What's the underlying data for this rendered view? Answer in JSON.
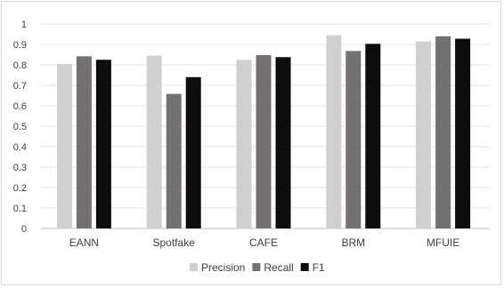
{
  "chart_data": {
    "type": "bar",
    "title": "",
    "xlabel": "",
    "ylabel": "",
    "categories": [
      "EANN",
      "Spotfake",
      "CAFE",
      "BRM",
      "MFUIE"
    ],
    "series": [
      {
        "name": "Precision",
        "color": "#d0d0d0",
        "values": [
          0.805,
          0.845,
          0.825,
          0.945,
          0.915
        ]
      },
      {
        "name": "Recall",
        "color": "#767171",
        "values": [
          0.842,
          0.658,
          0.848,
          0.868,
          0.94
        ]
      },
      {
        "name": "F1",
        "color": "#0d0d0d",
        "values": [
          0.825,
          0.74,
          0.838,
          0.903,
          0.928
        ]
      }
    ],
    "ylim": [
      0,
      1
    ],
    "yticks": [
      "0",
      "0.1",
      "0.2",
      "0.3",
      "0.4",
      "0.5",
      "0.6",
      "0.7",
      "0.8",
      "0.9",
      "1"
    ],
    "grid": true,
    "legend": "bottom"
  }
}
